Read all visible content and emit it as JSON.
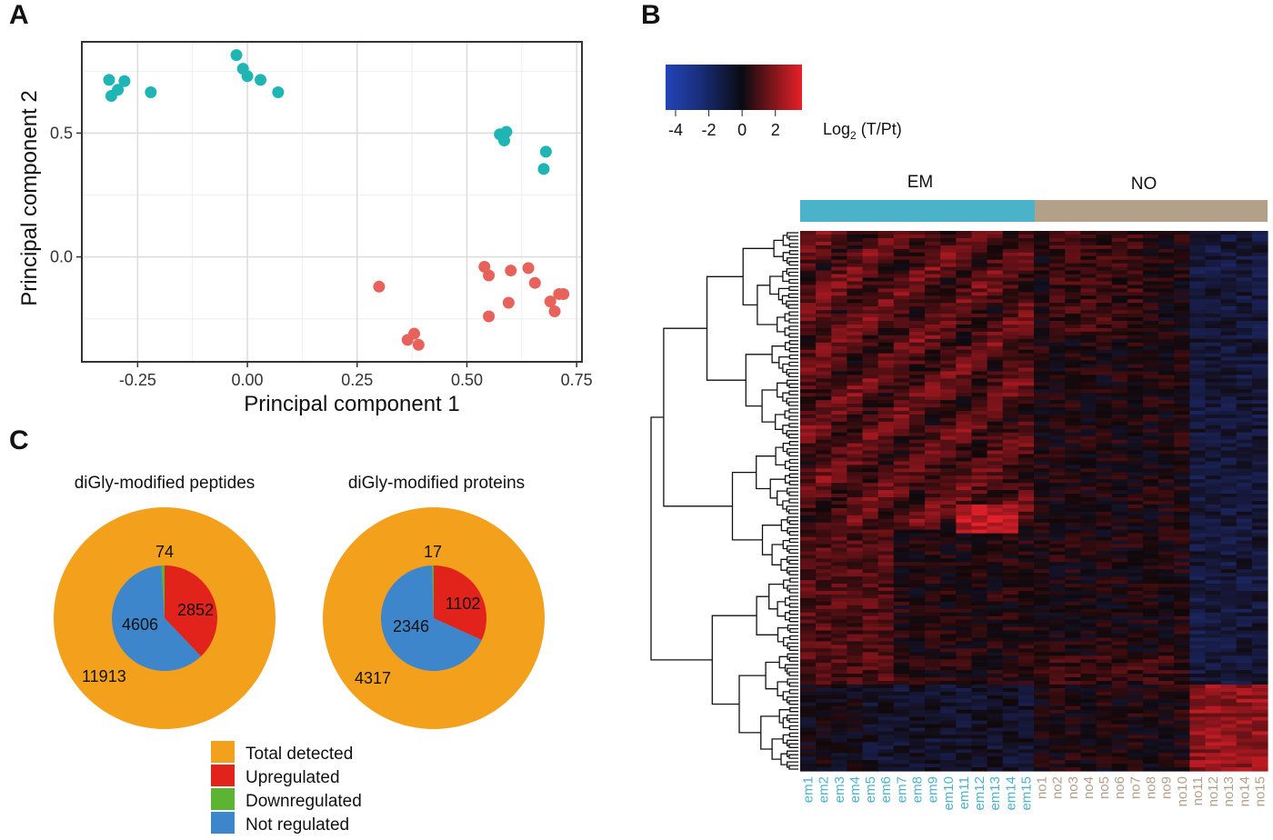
{
  "panels": {
    "a": "A",
    "b": "B",
    "c": "C"
  },
  "colors": {
    "em_cluster": "#1FB5B5",
    "no_cluster": "#E8625C",
    "em_bar": "#4BB3C9",
    "no_bar": "#B2A088",
    "total": "#F3A01D",
    "up": "#E2231C",
    "down": "#5CB532",
    "not_regulated": "#3D86CB"
  },
  "chart_data": [
    {
      "type": "scatter",
      "xlabel": "Principal component 1",
      "ylabel": "Principal component 2",
      "xlim": [
        -0.375,
        0.76
      ],
      "ylim": [
        -0.42,
        0.865
      ],
      "xticks": [
        -0.25,
        0.0,
        0.25,
        0.5,
        0.75
      ],
      "xtick_labels": [
        "-0.25",
        "0.00",
        "0.25",
        "0.50",
        "0.75"
      ],
      "yticks": [
        0.0,
        0.5
      ],
      "ytick_labels": [
        "0.0",
        "0.5"
      ],
      "grid": true,
      "series": [
        {
          "color_key": "em_cluster",
          "points": [
            {
              "x": -0.315,
              "y": 0.715
            },
            {
              "x": -0.31,
              "y": 0.65
            },
            {
              "x": -0.295,
              "y": 0.675
            },
            {
              "x": -0.28,
              "y": 0.71
            },
            {
              "x": -0.22,
              "y": 0.665
            },
            {
              "x": -0.025,
              "y": 0.815
            },
            {
              "x": -0.01,
              "y": 0.76
            },
            {
              "x": 0.0,
              "y": 0.73
            },
            {
              "x": 0.03,
              "y": 0.715
            },
            {
              "x": 0.07,
              "y": 0.665
            },
            {
              "x": 0.575,
              "y": 0.495
            },
            {
              "x": 0.585,
              "y": 0.47
            },
            {
              "x": 0.59,
              "y": 0.505
            },
            {
              "x": 0.68,
              "y": 0.425
            },
            {
              "x": 0.675,
              "y": 0.355
            }
          ]
        },
        {
          "color_key": "no_cluster",
          "points": [
            {
              "x": 0.3,
              "y": -0.12
            },
            {
              "x": 0.365,
              "y": -0.335
            },
            {
              "x": 0.38,
              "y": -0.31
            },
            {
              "x": 0.39,
              "y": -0.355
            },
            {
              "x": 0.54,
              "y": -0.04
            },
            {
              "x": 0.55,
              "y": -0.075
            },
            {
              "x": 0.55,
              "y": -0.24
            },
            {
              "x": 0.595,
              "y": -0.185
            },
            {
              "x": 0.6,
              "y": -0.055
            },
            {
              "x": 0.64,
              "y": -0.045
            },
            {
              "x": 0.655,
              "y": -0.105
            },
            {
              "x": 0.69,
              "y": -0.18
            },
            {
              "x": 0.7,
              "y": -0.22
            },
            {
              "x": 0.71,
              "y": -0.15
            },
            {
              "x": 0.72,
              "y": -0.15
            }
          ]
        }
      ]
    },
    {
      "type": "heatmap",
      "colorbar": {
        "ticks": [
          "-4",
          "-2",
          "0",
          "2"
        ],
        "tick_values": [
          -4,
          -2,
          0,
          2
        ],
        "range": [
          -4.6,
          3.6
        ],
        "label": "Log",
        "label_sub": "2",
        "label_rest": " (T/Pt)"
      },
      "groups": [
        {
          "label": "EM",
          "color_key": "em_bar",
          "count": 15
        },
        {
          "label": "NO",
          "color_key": "no_bar",
          "count": 15
        }
      ],
      "columns": [
        "em1",
        "em2",
        "em3",
        "em4",
        "em5",
        "em6",
        "em7",
        "em8",
        "em9",
        "em10",
        "em11",
        "em12",
        "em13",
        "em14",
        "em15",
        "no1",
        "no2",
        "no3",
        "no4",
        "no5",
        "no6",
        "no7",
        "no8",
        "no9",
        "no10",
        "no11",
        "no12",
        "no13",
        "no14",
        "no15"
      ],
      "row_count": 150,
      "dendrogram": true
    },
    {
      "type": "pie",
      "title": "diGly-modified peptides",
      "outer_label": "11913",
      "slices": [
        {
          "label": "Upregulated",
          "value": 2852,
          "color_key": "up"
        },
        {
          "label": "Not regulated",
          "value": 4606,
          "color_key": "not_regulated"
        },
        {
          "label": "Downregulated",
          "value": 74,
          "color_key": "down"
        }
      ]
    },
    {
      "type": "pie",
      "title": "diGly-modified proteins",
      "outer_label": "4317",
      "slices": [
        {
          "label": "Upregulated",
          "value": 1102,
          "color_key": "up"
        },
        {
          "label": "Not regulated",
          "value": 2346,
          "color_key": "not_regulated"
        },
        {
          "label": "Downregulated",
          "value": 17,
          "color_key": "down"
        }
      ]
    }
  ],
  "legend": [
    {
      "label": "Total detected",
      "color_key": "total"
    },
    {
      "label": "Upregulated",
      "color_key": "up"
    },
    {
      "label": "Downregulated",
      "color_key": "down"
    },
    {
      "label": "Not regulated",
      "color_key": "not_regulated"
    }
  ]
}
